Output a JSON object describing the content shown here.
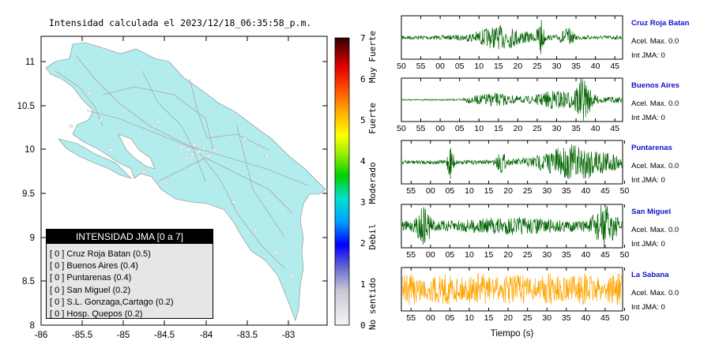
{
  "map": {
    "title": "Intensidad calculada el 2023/12/18_06:35:58_p.m.",
    "x_ticks": [
      "-86",
      "-85.5",
      "-85",
      "-84.5",
      "-84",
      "-83.5",
      "-83"
    ],
    "y_ticks": [
      "11",
      "10.5",
      "10",
      "9.5",
      "9",
      "8.5",
      "8"
    ]
  },
  "colorbar": {
    "ticks": [
      "0",
      "1",
      "2",
      "3",
      "4",
      "5",
      "6",
      "7"
    ],
    "categories": [
      "No sentido",
      "Debil",
      "Moderado",
      "Fuerte",
      "Muy Fuerte"
    ]
  },
  "legend": {
    "title": "INTENSIDAD JMA [0 a 7]",
    "items": [
      "[ 0 ]  Cruz Roja Batan (0.5)",
      "[ 0 ]  Buenos Aires (0.4)",
      "[ 0 ]  Puntarenas (0.4)",
      "[ 0 ]  San Miguel (0.2)",
      "[ 0 ]  S.L. Gonzaga,Cartago (0.2)",
      "[ 0 ]  Hosp. Quepos (0.2)"
    ]
  },
  "stations": [
    {
      "name": "Cruz Roja Batan",
      "acel": "Acel. Max. 0.0",
      "jma": "Int JMA: 0",
      "color": "#006400",
      "ticks": [
        "50",
        "55",
        "00",
        "05",
        "10",
        "15",
        "20",
        "25",
        "30",
        "35",
        "40",
        "45"
      ]
    },
    {
      "name": "Buenos Aires",
      "acel": "Acel. Max. 0.0",
      "jma": "Int JMA: 0",
      "color": "#006400",
      "ticks": [
        "50",
        "55",
        "00",
        "05",
        "10",
        "15",
        "20",
        "25",
        "30",
        "35",
        "40",
        "45"
      ]
    },
    {
      "name": "Puntarenas",
      "acel": "Acel. Max. 0.0",
      "jma": "Int JMA: 0",
      "color": "#006400",
      "ticks": [
        "55",
        "00",
        "05",
        "10",
        "15",
        "20",
        "25",
        "30",
        "35",
        "40",
        "45",
        "50"
      ]
    },
    {
      "name": "San Miguel",
      "acel": "Acel. Max. 0.0",
      "jma": "Int JMA: 0",
      "color": "#006400",
      "ticks": [
        "55",
        "00",
        "05",
        "10",
        "15",
        "20",
        "25",
        "30",
        "35",
        "40",
        "45",
        "50"
      ]
    },
    {
      "name": "La Sabana",
      "acel": "Acel. Max. 0.0",
      "jma": "Int JMA: 0",
      "color": "#ffa500",
      "ticks": [
        "55",
        "00",
        "05",
        "10",
        "15",
        "20",
        "25",
        "30",
        "35",
        "40",
        "45",
        "50"
      ]
    }
  ],
  "xlabel": "Tiempo (s)",
  "chart_data": [
    {
      "type": "heatmap",
      "title": "Intensidad calculada el 2023/12/18_06:35:58_p.m.",
      "xlabel": "",
      "ylabel": "",
      "xlim": [
        -86,
        -82.6
      ],
      "ylim": [
        8,
        11.3
      ],
      "colorbar": {
        "range": [
          0,
          7
        ],
        "labels": [
          "No sentido",
          "Debil",
          "Moderado",
          "Fuerte",
          "Muy Fuerte"
        ]
      }
    },
    {
      "type": "line",
      "series": [
        {
          "name": "Cruz Roja Batan",
          "peak_time_labels": [
            "27",
            "36"
          ]
        },
        {
          "name": "Buenos Aires",
          "peak_time_labels": [
            "37"
          ]
        },
        {
          "name": "Puntarenas",
          "peak_time_labels": [
            "04",
            "31"
          ]
        },
        {
          "name": "San Miguel",
          "peak_time_labels": [
            "56",
            "45"
          ]
        },
        {
          "name": "La Sabana",
          "peak_time_labels": []
        }
      ],
      "xlabel": "Tiempo (s)"
    }
  ]
}
